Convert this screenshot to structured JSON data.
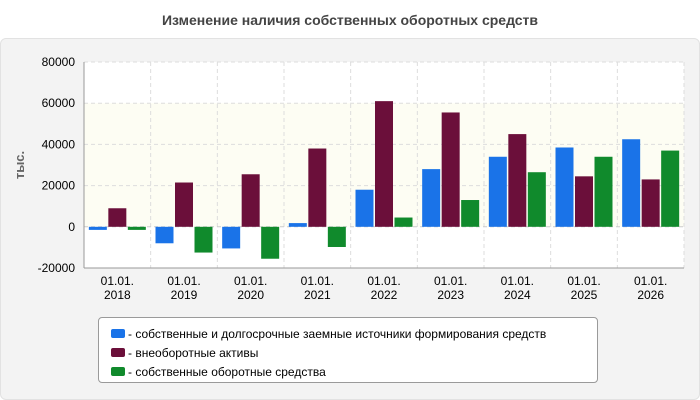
{
  "page": {
    "title": "Изменение наличия собственных оборотных средств"
  },
  "chart_data": {
    "type": "bar",
    "title": "Изменение наличия собственных оборотных средств",
    "ylabel": "тыс.",
    "xlabel": "",
    "ylim": [
      -20000,
      80000
    ],
    "yticks": [
      80000,
      60000,
      40000,
      20000,
      0,
      -20000
    ],
    "categories": [
      {
        "line1": "01.01.",
        "line2": "2018"
      },
      {
        "line1": "01.01.",
        "line2": "2019"
      },
      {
        "line1": "01.01.",
        "line2": "2020"
      },
      {
        "line1": "01.01.",
        "line2": "2021"
      },
      {
        "line1": "01.01.",
        "line2": "2022"
      },
      {
        "line1": "01.01.",
        "line2": "2023"
      },
      {
        "line1": "01.01.",
        "line2": "2024"
      },
      {
        "line1": "01.01.",
        "line2": "2025"
      },
      {
        "line1": "01.01.",
        "line2": "2026"
      }
    ],
    "series": [
      {
        "name": "собственные и долгосрочные заемные источники формирования средств",
        "color": "#1a73e8",
        "values": [
          -1500,
          -8000,
          -10500,
          1800,
          18000,
          28000,
          34000,
          38500,
          42500
        ]
      },
      {
        "name": "внеоборотные активы",
        "color": "#6b0f3a",
        "values": [
          9000,
          21500,
          25500,
          38000,
          61000,
          55500,
          45000,
          24500,
          23000
        ]
      },
      {
        "name": "собственные оборотные средства",
        "color": "#108a2c",
        "values": [
          -1500,
          -12500,
          -15500,
          -9800,
          4500,
          13000,
          26500,
          34000,
          37000
        ]
      }
    ],
    "grid": true,
    "legend_position": "bottom"
  }
}
